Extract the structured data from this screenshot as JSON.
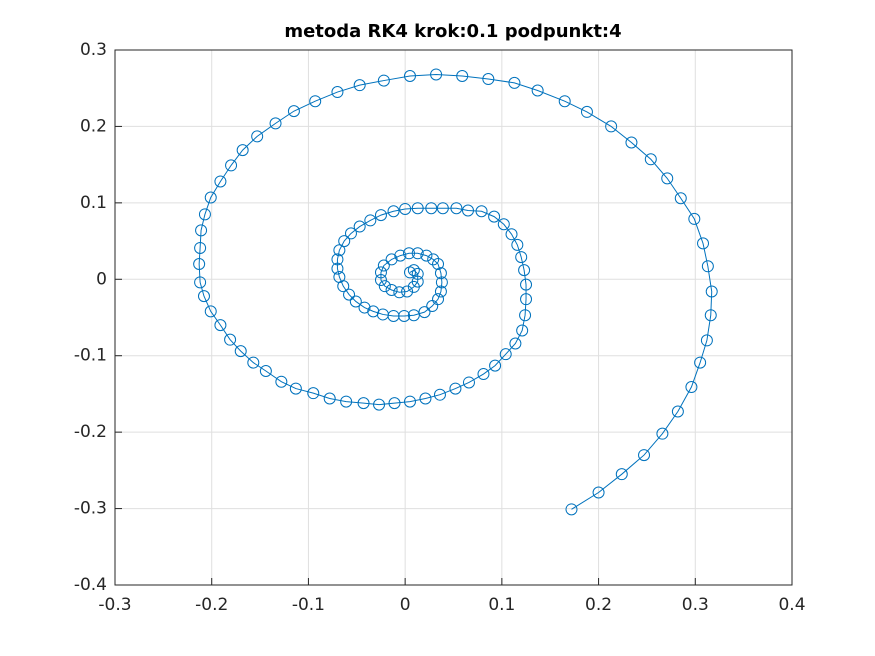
{
  "chart_data": {
    "type": "line",
    "title": "metoda RK4 krok:0.1 podpunkt:4",
    "x": [
      0.172,
      0.2,
      0.224,
      0.247,
      0.266,
      0.282,
      0.296,
      0.305,
      0.312,
      0.316,
      0.317,
      0.313,
      0.308,
      0.299,
      0.285,
      0.271,
      0.254,
      0.234,
      0.213,
      0.188,
      0.165,
      0.137,
      0.113,
      0.086,
      0.059,
      0.032,
      0.005,
      -0.022,
      -0.047,
      -0.07,
      -0.093,
      -0.115,
      -0.134,
      -0.153,
      -0.168,
      -0.18,
      -0.191,
      -0.201,
      -0.207,
      -0.211,
      -0.212,
      -0.213,
      -0.212,
      -0.208,
      -0.201,
      -0.191,
      -0.181,
      -0.17,
      -0.157,
      -0.144,
      -0.128,
      -0.113,
      -0.095,
      -0.078,
      -0.061,
      -0.043,
      -0.027,
      -0.011,
      0.005,
      0.021,
      0.036,
      0.052,
      0.066,
      0.081,
      0.093,
      0.104,
      0.114,
      0.121,
      0.124,
      0.125,
      0.125,
      0.123,
      0.12,
      0.116,
      0.11,
      0.102,
      0.092,
      0.079,
      0.065,
      0.053,
      0.039,
      0.027,
      0.013,
      0.0,
      -0.012,
      -0.025,
      -0.036,
      -0.047,
      -0.056,
      -0.063,
      -0.068,
      -0.07,
      -0.07,
      -0.068,
      -0.064,
      -0.058,
      -0.051,
      -0.042,
      -0.033,
      -0.023,
      -0.012,
      -0.001,
      0.009,
      0.02,
      0.028,
      0.034,
      0.037,
      0.038,
      0.037,
      0.034,
      0.029,
      0.022,
      0.013,
      0.004,
      -0.005,
      -0.014,
      -0.022,
      -0.025,
      -0.025,
      -0.021,
      -0.014,
      -0.006,
      0.002,
      0.009,
      0.013,
      0.013,
      0.009,
      0.005
    ],
    "series": [
      {
        "color": "#0072bd",
        "values": [
          -0.301,
          -0.279,
          -0.255,
          -0.23,
          -0.202,
          -0.173,
          -0.141,
          -0.109,
          -0.08,
          -0.047,
          -0.016,
          0.017,
          0.047,
          0.079,
          0.106,
          0.132,
          0.157,
          0.179,
          0.2,
          0.219,
          0.233,
          0.247,
          0.257,
          0.262,
          0.266,
          0.268,
          0.266,
          0.26,
          0.254,
          0.245,
          0.233,
          0.22,
          0.204,
          0.187,
          0.169,
          0.149,
          0.128,
          0.107,
          0.085,
          0.064,
          0.041,
          0.02,
          -0.004,
          -0.022,
          -0.042,
          -0.06,
          -0.079,
          -0.094,
          -0.109,
          -0.12,
          -0.134,
          -0.143,
          -0.149,
          -0.156,
          -0.16,
          -0.162,
          -0.164,
          -0.162,
          -0.16,
          -0.156,
          -0.151,
          -0.143,
          -0.135,
          -0.124,
          -0.113,
          -0.098,
          -0.084,
          -0.067,
          -0.047,
          -0.026,
          -0.007,
          0.012,
          0.029,
          0.045,
          0.059,
          0.072,
          0.082,
          0.089,
          0.09,
          0.093,
          0.093,
          0.093,
          0.093,
          0.092,
          0.089,
          0.084,
          0.077,
          0.069,
          0.06,
          0.05,
          0.038,
          0.026,
          0.014,
          0.003,
          -0.009,
          -0.02,
          -0.029,
          -0.037,
          -0.042,
          -0.046,
          -0.048,
          -0.048,
          -0.047,
          -0.043,
          -0.035,
          -0.026,
          -0.016,
          -0.004,
          0.008,
          0.02,
          0.026,
          0.031,
          0.034,
          0.034,
          0.031,
          0.026,
          0.018,
          0.009,
          -0.001,
          -0.009,
          -0.014,
          -0.017,
          -0.016,
          -0.01,
          -0.003,
          0.007,
          0.012,
          0.009
        ]
      }
    ],
    "marker": "circle",
    "xlim": [
      -0.3,
      0.4
    ],
    "ylim": [
      -0.4,
      0.3
    ],
    "xticks": [
      -0.3,
      -0.2,
      -0.1,
      0,
      0.1,
      0.2,
      0.3,
      0.4
    ],
    "yticks": [
      -0.4,
      -0.3,
      -0.2,
      -0.1,
      0,
      0.1,
      0.2,
      0.3
    ],
    "grid": true
  }
}
